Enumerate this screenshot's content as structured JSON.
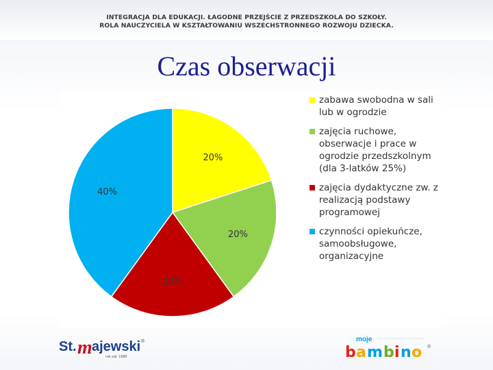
{
  "header": {
    "line1": "INTEGRACJA DLA EDUKACJI. ŁAGODNE PRZEJŚCIE Z PRZEDSZKOLA DO SZKOŁY.",
    "line2": "ROLA NAUCZYCIELA W KSZTAŁTOWANIU WSZECHSTRONNEGO ROZWOJU DZIECKA."
  },
  "title": "Czas obserwacji",
  "chart_data": {
    "type": "pie",
    "slices": [
      {
        "label": "zabawa swobodna w sali lub w ogrodzie",
        "value": 20,
        "display": "20%",
        "color": "#ffff00"
      },
      {
        "label": "zajęcia ruchowe, obserwacje i prace w ogrodzie przedszkolnym (dla 3-latków 25%)",
        "value": 20,
        "display": "20%",
        "color": "#92d050"
      },
      {
        "label": "zajęcia dydaktyczne zw. z realizacją podstawy programowej",
        "value": 20,
        "display": "20%",
        "color": "#c00000"
      },
      {
        "label": "czynności opiekuńcze, samoobsługowe, organizacyjne",
        "value": 40,
        "display": "40%",
        "color": "#00b0f0"
      }
    ],
    "start_angle_deg": 0,
    "direction": "clockwise",
    "legend_position": "right"
  },
  "footer": {
    "left_logo": "St.majewski",
    "left_logo_sub": "rok zał. 1989",
    "right_logo_top": "moje",
    "right_logo_main": "bambino"
  },
  "colors": {
    "title": "#1b1f8f",
    "header_text": "#3a3a3a",
    "left_logo_red": "#c4161c",
    "bambino_colors": [
      "#e2231a",
      "#f7a800",
      "#00a0e3",
      "#6ab023",
      "#e2231a",
      "#00a0e3",
      "#f7a800"
    ]
  }
}
